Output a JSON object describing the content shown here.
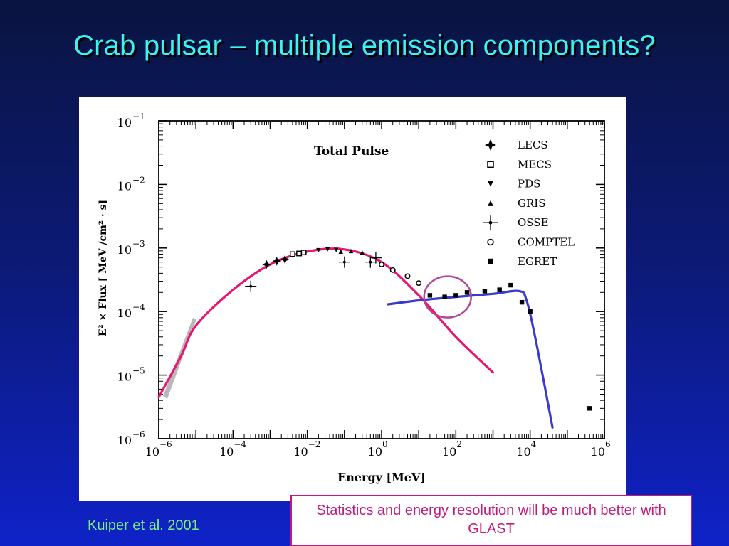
{
  "slide": {
    "title": "Crab pulsar – multiple emission components?",
    "citation": "Kuiper et al. 2001",
    "note": "Statistics and energy resolution will be much better with GLAST"
  },
  "colors": {
    "background_top": "#0a1440",
    "background_bottom": "#0f22c8",
    "title": "#3ff2f2",
    "citation": "#7cf27c",
    "note": "#c21a7a",
    "curve_pink": "#e8166e",
    "curve_blue": "#3a3acc",
    "circle": "#b0479a"
  },
  "chart_data": {
    "type": "scatter",
    "title": "Total Pulse",
    "xlabel": "Energy [MeV]",
    "ylabel": "E² × Flux [ MeV /cm² · s]",
    "xscale": "log",
    "yscale": "log",
    "xlim": [
      1e-06,
      1000000.0
    ],
    "ylim": [
      1e-06,
      0.1
    ],
    "x_ticks": [
      {
        "base": "10",
        "exp": "−6"
      },
      {
        "base": "10",
        "exp": "−4"
      },
      {
        "base": "10",
        "exp": "−2"
      },
      {
        "base": "10",
        "exp": "0"
      },
      {
        "base": "10",
        "exp": "2"
      },
      {
        "base": "10",
        "exp": "4"
      },
      {
        "base": "10",
        "exp": "6"
      }
    ],
    "y_ticks": [
      {
        "base": "10",
        "exp": "−6"
      },
      {
        "base": "10",
        "exp": "−5"
      },
      {
        "base": "10",
        "exp": "−4"
      },
      {
        "base": "10",
        "exp": "−3"
      },
      {
        "base": "10",
        "exp": "−2"
      },
      {
        "base": "10",
        "exp": "−1"
      }
    ],
    "legend": {
      "position": "top-right",
      "entries": [
        "LECS",
        "MECS",
        "PDS",
        "GRIS",
        "OSSE",
        "COMPTEL",
        "EGRET"
      ]
    },
    "series": [
      {
        "name": "LECS",
        "points": [
          [
            0.0008,
            0.00055
          ],
          [
            0.0015,
            0.00062
          ],
          [
            0.0025,
            0.00066
          ]
        ]
      },
      {
        "name": "MECS",
        "points": [
          [
            0.004,
            0.0008
          ],
          [
            0.006,
            0.00082
          ],
          [
            0.008,
            0.00085
          ]
        ]
      },
      {
        "name": "PDS",
        "points": [
          [
            0.02,
            0.00092
          ],
          [
            0.035,
            0.00095
          ],
          [
            0.06,
            0.00093
          ]
        ]
      },
      {
        "name": "GRIS",
        "points": [
          [
            0.08,
            0.00088
          ],
          [
            0.15,
            0.0009
          ],
          [
            0.3,
            0.00085
          ]
        ]
      },
      {
        "name": "OSSE",
        "points": [
          [
            0.0003,
            0.00025
          ],
          [
            0.1,
            0.0006
          ],
          [
            0.5,
            0.0006
          ],
          [
            0.7,
            0.0007
          ]
        ]
      },
      {
        "name": "COMPTEL",
        "points": [
          [
            1.0,
            0.00055
          ],
          [
            2.0,
            0.00045
          ],
          [
            5.0,
            0.00036
          ],
          [
            10.0,
            0.00028
          ]
        ]
      },
      {
        "name": "EGRET",
        "points": [
          [
            20,
            0.00018
          ],
          [
            50,
            0.00017
          ],
          [
            100,
            0.00018
          ],
          [
            200,
            0.0002
          ],
          [
            600,
            0.00021
          ],
          [
            1500,
            0.00022
          ],
          [
            3000,
            0.00026
          ],
          [
            6000,
            0.00014
          ],
          [
            10000,
            0.0001
          ],
          [
            400000,
            3e-06
          ]
        ]
      }
    ],
    "curves": [
      {
        "color": "pink",
        "points": [
          [
            1e-06,
            4.5e-06
          ],
          [
            4e-06,
            2e-05
          ],
          [
            1e-05,
            6e-05
          ],
          [
            0.0001,
            0.00022
          ],
          [
            0.001,
            0.00055
          ],
          [
            0.01,
            0.00088
          ],
          [
            0.1,
            0.00095
          ],
          [
            1,
            0.0006
          ],
          [
            10,
            0.00018
          ],
          [
            100,
            4e-05
          ],
          [
            1000,
            1.1e-05
          ]
        ]
      },
      {
        "color": "blue",
        "points": [
          [
            1.5,
            0.00013
          ],
          [
            10,
            0.00015
          ],
          [
            100,
            0.00017
          ],
          [
            1000,
            0.00019
          ],
          [
            5000,
            0.00021
          ],
          [
            8000,
            0.00015
          ],
          [
            15000,
            3e-05
          ],
          [
            40000,
            1.5e-06
          ]
        ]
      }
    ],
    "highlight_circle": {
      "center": [
        60,
        0.00017
      ]
    }
  }
}
